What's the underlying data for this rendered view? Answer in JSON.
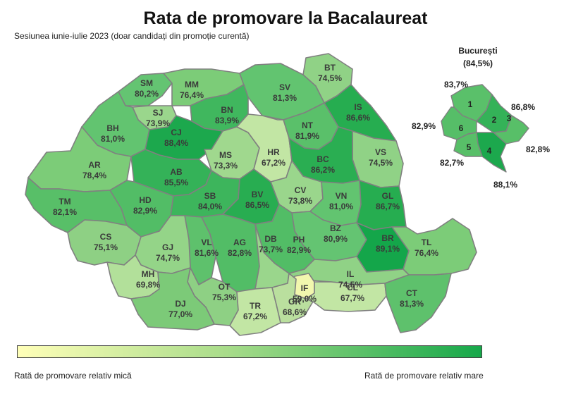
{
  "title": "Rata de promovare la Bacalaureat",
  "subtitle": "Sesiunea iunie-iulie 2023 (doar candidați din promoție curentă)",
  "legend": {
    "low": "Rată de promovare relativ mică",
    "high": "Rată de promovare relativ mare"
  },
  "colors": {
    "low": "#ffffb8",
    "mid": "#a8dc8a",
    "high": "#16a84a",
    "border": "#808080"
  },
  "counties": [
    {
      "code": "SM",
      "value": "80,2%"
    },
    {
      "code": "MM",
      "value": "76,4%"
    },
    {
      "code": "SV",
      "value": "81,3%"
    },
    {
      "code": "BT",
      "value": "74,5%"
    },
    {
      "code": "SJ",
      "value": "73,9%"
    },
    {
      "code": "BN",
      "value": "83,9%"
    },
    {
      "code": "IS",
      "value": "86,6%"
    },
    {
      "code": "BH",
      "value": "81,0%"
    },
    {
      "code": "CJ",
      "value": "88,4%"
    },
    {
      "code": "NT",
      "value": "81,9%"
    },
    {
      "code": "MS",
      "value": "73,3%"
    },
    {
      "code": "HR",
      "value": "67,2%"
    },
    {
      "code": "VS",
      "value": "74,5%"
    },
    {
      "code": "AR",
      "value": "78,4%"
    },
    {
      "code": "AB",
      "value": "85,5%"
    },
    {
      "code": "BC",
      "value": "86,2%"
    },
    {
      "code": "CV",
      "value": "73,8%"
    },
    {
      "code": "HD",
      "value": "82,9%"
    },
    {
      "code": "SB",
      "value": "84,0%"
    },
    {
      "code": "BV",
      "value": "86,5%"
    },
    {
      "code": "VN",
      "value": "81,0%"
    },
    {
      "code": "GL",
      "value": "86,7%"
    },
    {
      "code": "TM",
      "value": "82,1%"
    },
    {
      "code": "BZ",
      "value": "80,9%"
    },
    {
      "code": "CS",
      "value": "75,1%"
    },
    {
      "code": "VL",
      "value": "81,6%"
    },
    {
      "code": "AG",
      "value": "82,8%"
    },
    {
      "code": "PH",
      "value": "82,9%"
    },
    {
      "code": "BR",
      "value": "89,1%"
    },
    {
      "code": "GJ",
      "value": "74,7%"
    },
    {
      "code": "DB",
      "value": "73,7%"
    },
    {
      "code": "TL",
      "value": "76,4%"
    },
    {
      "code": "MH",
      "value": "69,8%"
    },
    {
      "code": "IL",
      "value": "74,5%"
    },
    {
      "code": "IF",
      "value": "59,0%"
    },
    {
      "code": "OT",
      "value": "75,3%"
    },
    {
      "code": "DJ",
      "value": "77,0%"
    },
    {
      "code": "CL",
      "value": "67,7%"
    },
    {
      "code": "CT",
      "value": "81,3%"
    },
    {
      "code": "TR",
      "value": "67,2%"
    },
    {
      "code": "GR",
      "value": "68,6%"
    }
  ],
  "bucharest": {
    "title": "București",
    "total": "(84,5%)",
    "sectors": [
      {
        "num": "1",
        "value": "83,7%"
      },
      {
        "num": "2",
        "value": "86,8%"
      },
      {
        "num": "3",
        "value": "82,8%"
      },
      {
        "num": "4",
        "value": "88,1%"
      },
      {
        "num": "5",
        "value": "82,7%"
      },
      {
        "num": "6",
        "value": "82,9%"
      }
    ]
  }
}
